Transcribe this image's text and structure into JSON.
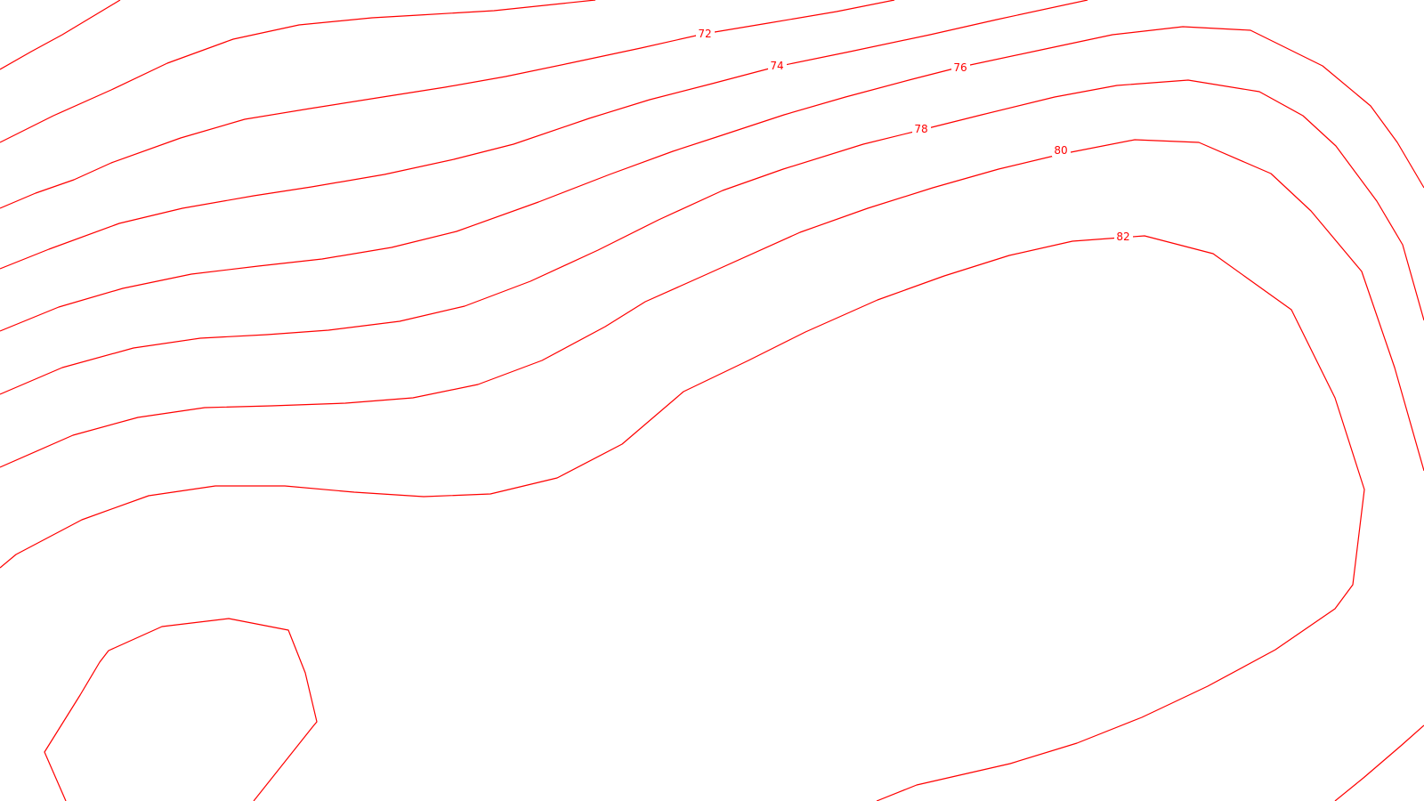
{
  "map": {
    "line_color": "#ff0000",
    "background_color": "#ffffff",
    "contour_labels": [
      {
        "id": "72",
        "text": "72"
      },
      {
        "id": "74",
        "text": "74"
      },
      {
        "id": "76",
        "text": "76"
      },
      {
        "id": "78",
        "text": "78"
      },
      {
        "id": "80",
        "text": "80"
      },
      {
        "id": "82",
        "text": "82"
      }
    ]
  }
}
